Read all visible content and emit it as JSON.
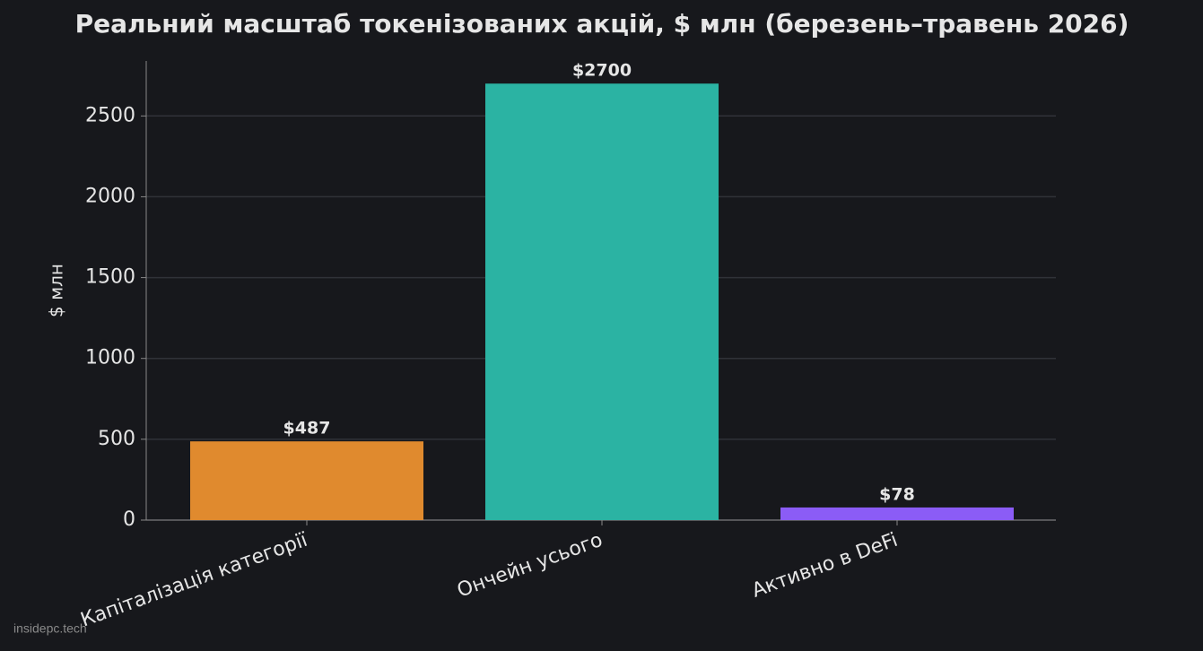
{
  "chart_data": {
    "type": "bar",
    "title": "Реальний масштаб токенізованих акцій, $ млн (березень–травень 2026)",
    "y_label": "$ млн",
    "categories": [
      "Капіталізація категорії",
      "Ончейн усього",
      "Активно в DeFi"
    ],
    "values": [
      487,
      2700,
      78
    ],
    "value_labels": [
      "$487",
      "$2700",
      "$78"
    ],
    "colors": [
      "#e08a2e",
      "#2bb3a3",
      "#8b5cf6"
    ],
    "ylim": [
      0,
      2840
    ],
    "yticks": [
      0,
      500,
      1000,
      1500,
      2000,
      2500
    ],
    "grid": true
  },
  "watermark": "insidepc.tech"
}
